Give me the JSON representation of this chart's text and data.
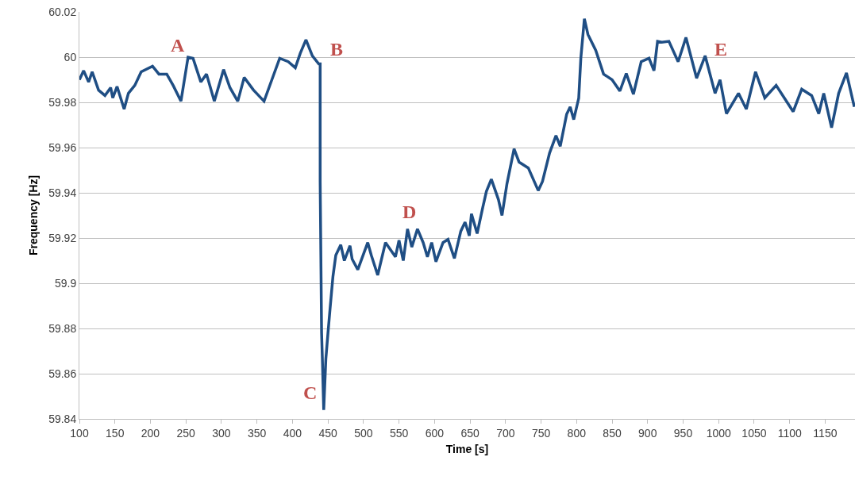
{
  "chart_data": {
    "type": "line",
    "xlabel": "Time [s]",
    "ylabel": "Frequency [Hz]",
    "xlim": [
      100,
      1192
    ],
    "xticks": [
      100,
      150,
      200,
      250,
      300,
      350,
      400,
      450,
      500,
      550,
      600,
      650,
      700,
      750,
      800,
      850,
      900,
      950,
      1000,
      1050,
      1100,
      1150
    ],
    "ylim": [
      59.84,
      60.02
    ],
    "yticks": [
      59.84,
      59.86,
      59.88,
      59.9,
      59.92,
      59.94,
      59.96,
      59.98,
      60,
      60.02
    ],
    "grid": "y",
    "marker": "none",
    "line_style": "solid",
    "annotations": [
      "A",
      "B",
      "C",
      "D",
      "E"
    ],
    "series": [
      {
        "color": "#1f4e84",
        "x": [
          100,
          106,
          113,
          118,
          127,
          136,
          144,
          147,
          153,
          163,
          169,
          178,
          187,
          203,
          212,
          223,
          232,
          243,
          253,
          260,
          271,
          279,
          290,
          303,
          312,
          323,
          332,
          345,
          360,
          371,
          382,
          394,
          404,
          411,
          419,
          428,
          437,
          439,
          439,
          441,
          442,
          444,
          447,
          450,
          453,
          457,
          461,
          468,
          473,
          481,
          484,
          492,
          506,
          511,
          520,
          531,
          545,
          550,
          556,
          562,
          568,
          576,
          584,
          590,
          596,
          602,
          612,
          619,
          628,
          637,
          643,
          649,
          652,
          660,
          668,
          673,
          680,
          690,
          695,
          702,
          712,
          719,
          732,
          746,
          752,
          762,
          771,
          777,
          786,
          791,
          796,
          803,
          806,
          811,
          816,
          827,
          838,
          850,
          861,
          870,
          880,
          891,
          902,
          909,
          914,
          920,
          930,
          943,
          954,
          969,
          981,
          995,
          1002,
          1011,
          1028,
          1039,
          1052,
          1065,
          1081,
          1105,
          1117,
          1131,
          1141,
          1148,
          1159,
          1169,
          1180,
          1191
        ],
        "values": [
          59.99,
          59.994,
          59.989,
          59.9935,
          59.9854,
          59.983,
          59.9865,
          59.982,
          59.987,
          59.977,
          59.984,
          59.9875,
          59.9935,
          59.996,
          59.9925,
          59.9925,
          59.9875,
          59.9805,
          60,
          59.9995,
          59.989,
          59.9925,
          59.9805,
          59.9945,
          59.9865,
          59.9805,
          59.991,
          59.9855,
          59.9805,
          59.99,
          59.9995,
          59.998,
          59.9953,
          60.0017,
          60.0077,
          60.0006,
          59.997,
          59.997,
          59.945,
          59.878,
          59.8676,
          59.844,
          59.8665,
          59.878,
          59.889,
          59.903,
          59.9124,
          59.917,
          59.91,
          59.9166,
          59.9107,
          59.906,
          59.918,
          59.9124,
          59.9036,
          59.918,
          59.9117,
          59.919,
          59.91,
          59.924,
          59.916,
          59.924,
          59.918,
          59.9117,
          59.918,
          59.9095,
          59.918,
          59.9194,
          59.911,
          59.923,
          59.927,
          59.921,
          59.9307,
          59.922,
          59.9336,
          59.9406,
          59.946,
          59.937,
          59.93,
          59.944,
          59.9594,
          59.9536,
          59.951,
          59.941,
          59.945,
          59.9576,
          59.9653,
          59.9606,
          59.9747,
          59.978,
          59.9724,
          59.9818,
          59.9995,
          60.017,
          60.01,
          60.003,
          59.9925,
          59.99,
          59.985,
          59.9928,
          59.9836,
          59.998,
          59.9995,
          59.994,
          60.007,
          60.0066,
          60.007,
          59.998,
          60.0087,
          59.9907,
          60.0006,
          59.984,
          59.99,
          59.975,
          59.984,
          59.977,
          59.9935,
          59.982,
          59.9875,
          59.9759,
          59.9858,
          59.983,
          59.975,
          59.984,
          59.9688,
          59.984,
          59.993,
          59.978
        ]
      }
    ]
  }
}
